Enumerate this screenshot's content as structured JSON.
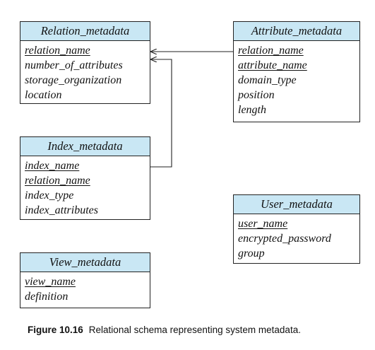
{
  "tables": {
    "relation_metadata": {
      "name": "Relation_metadata",
      "attributes": [
        {
          "label": "relation_name",
          "key": true
        },
        {
          "label": "number_of_attributes",
          "key": false
        },
        {
          "label": "storage_organization",
          "key": false
        },
        {
          "label": "location",
          "key": false
        }
      ]
    },
    "attribute_metadata": {
      "name": "Attribute_metadata",
      "attributes": [
        {
          "label": "relation_name",
          "key": true
        },
        {
          "label": "attribute_name",
          "key": true
        },
        {
          "label": "domain_type",
          "key": false
        },
        {
          "label": "position",
          "key": false
        },
        {
          "label": "length",
          "key": false
        }
      ]
    },
    "index_metadata": {
      "name": "Index_metadata",
      "attributes": [
        {
          "label": "index_name",
          "key": true
        },
        {
          "label": "relation_name",
          "key": true
        },
        {
          "label": "index_type",
          "key": false
        },
        {
          "label": "index_attributes",
          "key": false
        }
      ]
    },
    "user_metadata": {
      "name": "User_metadata",
      "attributes": [
        {
          "label": "user_name",
          "key": true
        },
        {
          "label": "encrypted_password",
          "key": false
        },
        {
          "label": "group",
          "key": false
        }
      ]
    },
    "view_metadata": {
      "name": "View_metadata",
      "attributes": [
        {
          "label": "view_name",
          "key": true
        },
        {
          "label": "definition",
          "key": false
        }
      ]
    }
  },
  "caption": {
    "label": "Figure 10.16",
    "text": "Relational schema representing system metadata."
  }
}
